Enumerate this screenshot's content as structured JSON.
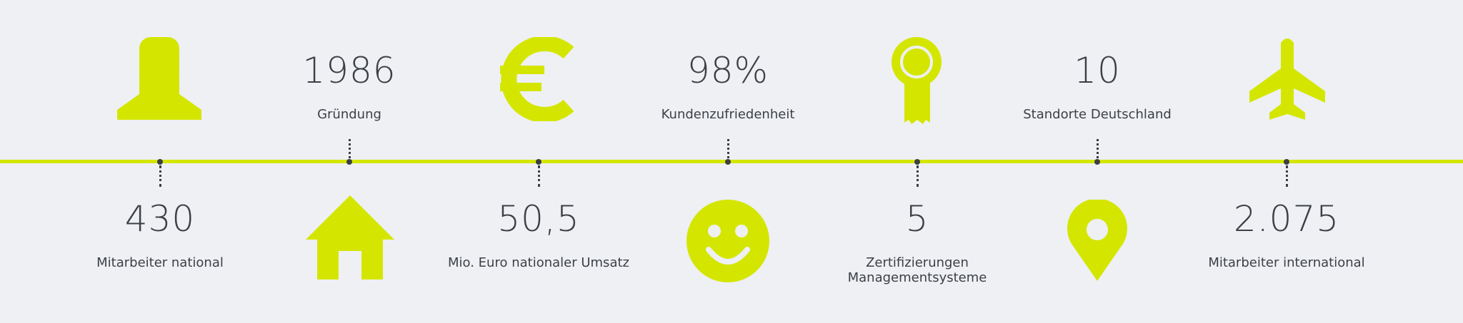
{
  "colors": {
    "accent": "#d4e600",
    "text": "#3c3f45",
    "background": "#eef0f4"
  },
  "stats_top": [
    {
      "value": "1986",
      "label": "Gründung"
    },
    {
      "value": "98%",
      "label": "Kundenzufriedenheit"
    },
    {
      "value": "10",
      "label": "Standorte Deutschland"
    }
  ],
  "stats_bottom": [
    {
      "value": "430",
      "label": "Mitarbeiter national"
    },
    {
      "value": "50,5",
      "label": "Mio. Euro nationaler Umsatz"
    },
    {
      "value": "5",
      "label": "Zertifizierungen Managementsysteme"
    },
    {
      "value": "2.075",
      "label": "Mitarbeiter international"
    }
  ],
  "icons": [
    "person-icon",
    "euro-icon",
    "award-ribbon-icon",
    "airplane-icon",
    "house-icon",
    "smiley-icon",
    "location-pin-icon"
  ]
}
